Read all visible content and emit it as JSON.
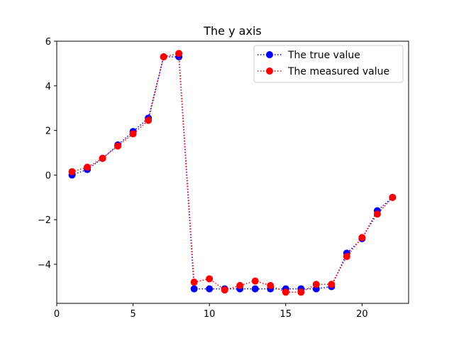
{
  "chart_data": {
    "type": "line",
    "title": "The y axis",
    "xlabel": "",
    "ylabel": "",
    "xlim": [
      0,
      23.05
    ],
    "ylim": [
      -5.75,
      6.0
    ],
    "xticks": [
      0,
      5,
      10,
      15,
      20
    ],
    "xtick_labels": [
      "0",
      "5",
      "10",
      "15",
      "20"
    ],
    "yticks": [
      -4,
      -2,
      0,
      2,
      4,
      6
    ],
    "ytick_labels": [
      "−4",
      "−2",
      "0",
      "2",
      "4",
      "6"
    ],
    "grid": false,
    "legend_position": "top-right",
    "x": [
      1,
      2,
      3,
      4,
      5,
      6,
      7,
      8,
      9,
      10,
      11,
      12,
      13,
      14,
      15,
      16,
      17,
      18,
      19,
      20,
      21,
      22
    ],
    "series": [
      {
        "name": "The true value",
        "color": "#0000ff",
        "marker": "circle",
        "linestyle": "dotted",
        "values": [
          0.0,
          0.25,
          0.75,
          1.35,
          1.95,
          2.55,
          5.3,
          5.3,
          -5.1,
          -5.1,
          -5.1,
          -5.1,
          -5.1,
          -5.1,
          -5.1,
          -5.1,
          -5.1,
          -5.0,
          -3.5,
          -2.85,
          -1.6,
          -1.0
        ]
      },
      {
        "name": "The measured value",
        "color": "#ff0000",
        "marker": "circle",
        "linestyle": "dotted",
        "values": [
          0.15,
          0.35,
          0.75,
          1.3,
          1.85,
          2.45,
          5.3,
          5.45,
          -4.8,
          -4.65,
          -5.15,
          -4.95,
          -4.75,
          -4.95,
          -5.25,
          -5.25,
          -4.9,
          -4.9,
          -3.65,
          -2.8,
          -1.75,
          -1.0
        ]
      }
    ]
  }
}
